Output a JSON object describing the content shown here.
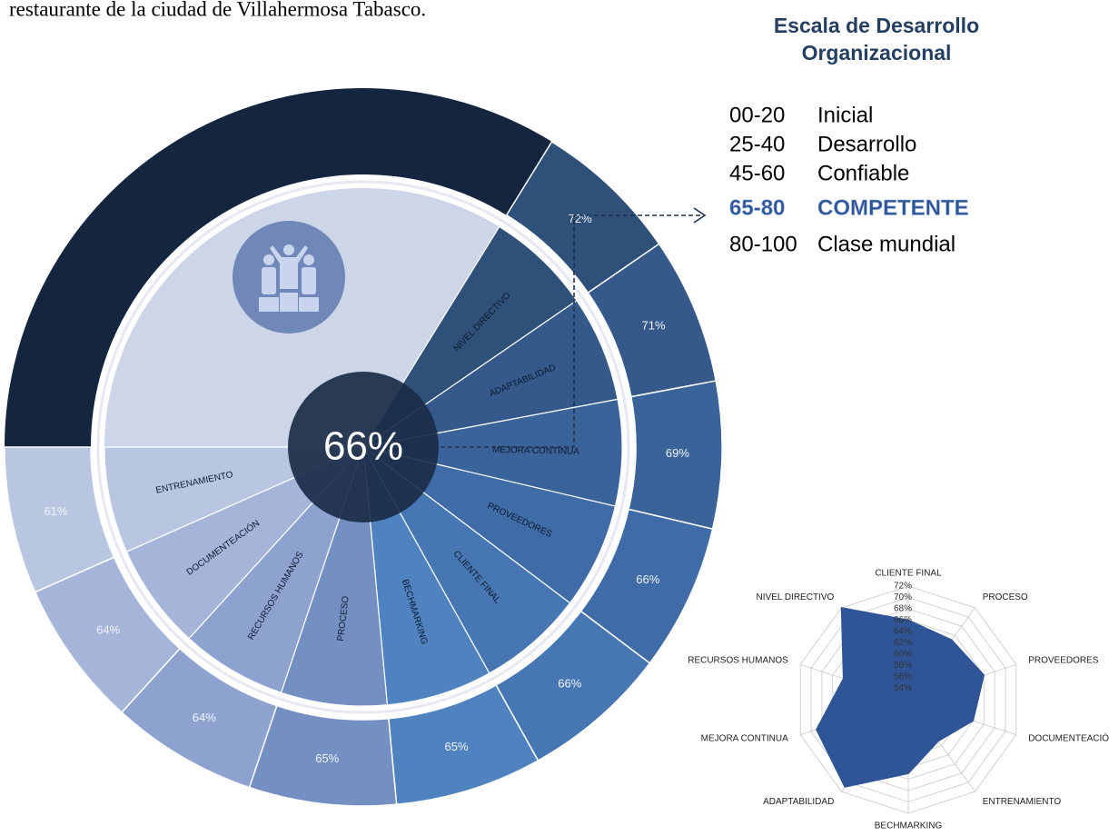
{
  "header_text": "restaurante de la ciudad de Villahermosa Tabasco.",
  "legend_scale": {
    "title_lines": [
      "Escala de Desarrollo",
      "Organizacional"
    ],
    "items": [
      {
        "range": "00-20",
        "label": "Inicial"
      },
      {
        "range": "25-40",
        "label": "Desarrollo"
      },
      {
        "range": "45-60",
        "label": "Confiable"
      },
      {
        "range": "65-80",
        "label": "COMPETENTE"
      },
      {
        "range": "80-100",
        "label": "Clase mundial"
      }
    ],
    "highlight": 3
  },
  "chart_data": [
    {
      "type": "donut",
      "categories": [
        "NIVEL DIRECTIVO",
        "ADAPTABILIDAD",
        "MEJORA CONTINUA",
        "PROVEEDORES",
        "CLIENTE FINAL",
        "BECHMARKING",
        "PROCESO",
        "RECURSOS HUMANOS",
        "DOCUMENTEACIÓN",
        "ENTRENAMIENTO"
      ],
      "values": [
        72,
        71,
        69,
        66,
        66,
        65,
        65,
        64,
        64,
        61
      ],
      "value_labels": [
        "72%",
        "71%",
        "69%",
        "66%",
        "66%",
        "65%",
        "65%",
        "64%",
        "64%",
        "61%"
      ],
      "colors": [
        "#2f5078",
        "#34598a",
        "#3a639a",
        "#3f6ca6",
        "#4677b2",
        "#4f83c0",
        "#7490c2",
        "#8da2cf",
        "#a5b5d9",
        "#b9c6e1"
      ],
      "center": {
        "value": 66,
        "label": "66%"
      }
    },
    {
      "type": "radar",
      "categories": [
        "CLIENTE FINAL",
        "PROCESO",
        "PROVEEDORES",
        "DOCUMENTEACIÓN",
        "ENTRENAMIENTO",
        "BECHMARKING",
        "ADAPTABILIDAD",
        "MEJORA CONTINUA",
        "RECURSOS HUMANOS",
        "NIVEL DIRECTIVO"
      ],
      "values": [
        66,
        65,
        66,
        64,
        61,
        65,
        71,
        69,
        64,
        72
      ],
      "color": "#2f5597",
      "ylim": [
        52,
        72
      ],
      "yticks": [
        {
          "value": 54,
          "label": "54%"
        },
        {
          "value": 56,
          "label": "56%"
        },
        {
          "value": 58,
          "label": "58%"
        },
        {
          "value": 60,
          "label": "60%"
        },
        {
          "value": 62,
          "label": "62%"
        },
        {
          "value": 64,
          "label": "64%"
        },
        {
          "value": 66,
          "label": "66%"
        },
        {
          "value": 68,
          "label": "68%"
        },
        {
          "value": 70,
          "label": "70%"
        },
        {
          "value": 72,
          "label": "72%"
        }
      ],
      "grid": true
    }
  ]
}
